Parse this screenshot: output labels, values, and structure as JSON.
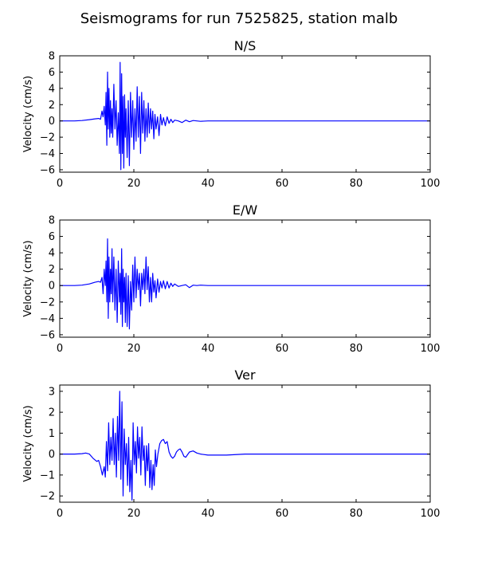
{
  "figure": {
    "title": "Seismograms for run 7525825, station malb",
    "line_color": "#0000ff"
  },
  "chart_data": [
    {
      "type": "line",
      "title": "N/S",
      "xlabel": "",
      "ylabel": "Velocity (cm/s)",
      "xlim": [
        0,
        100
      ],
      "ylim": [
        -6.3,
        8
      ],
      "xticks": [
        0,
        20,
        40,
        60,
        80,
        100
      ],
      "yticks": [
        -6,
        -4,
        -2,
        0,
        2,
        4,
        6,
        8
      ],
      "grid": false,
      "series": [
        {
          "x": [
            0,
            4,
            6,
            8,
            9.5,
            10.5,
            11,
            11.4,
            11.7,
            12,
            12.3,
            12.5,
            12.7,
            12.9,
            13.1,
            13.3,
            13.5,
            13.7,
            13.9,
            14.1,
            14.3,
            14.6,
            14.9,
            15.2,
            15.5,
            15.8,
            16.1,
            16.3,
            16.5,
            16.7,
            16.9,
            17.1,
            17.3,
            17.5,
            17.7,
            17.9,
            18.2,
            18.5,
            18.8,
            19.1,
            19.4,
            19.7,
            20,
            20.3,
            20.6,
            20.9,
            21.2,
            21.5,
            21.8,
            22.1,
            22.4,
            22.7,
            23,
            23.3,
            23.6,
            23.9,
            24.2,
            24.5,
            24.8,
            25.1,
            25.4,
            25.7,
            26,
            26.4,
            26.8,
            27.2,
            27.6,
            28,
            28.5,
            29,
            29.5,
            30,
            30.5,
            31,
            32,
            33,
            34,
            35,
            36,
            37,
            38,
            40,
            45,
            50,
            60,
            70,
            80,
            90,
            100
          ],
          "y": [
            0,
            0,
            0.05,
            0.15,
            0.25,
            0.3,
            0.2,
            1.2,
            0.5,
            1.8,
            -0.5,
            3.5,
            -3,
            6,
            -1,
            4,
            -2,
            2.5,
            -1.5,
            1.5,
            -2,
            4.5,
            -1,
            2.5,
            -3,
            1,
            -4,
            7.2,
            -6,
            5.8,
            -4,
            3,
            -5.8,
            3.2,
            -2,
            1.5,
            -4.5,
            2.5,
            -5.5,
            3.5,
            -2,
            2.5,
            -3.5,
            1.5,
            -2.5,
            4.2,
            -2,
            3,
            -4,
            3.5,
            -1.5,
            2.5,
            -2.5,
            1.5,
            -2,
            2.2,
            -1.5,
            1.5,
            -1,
            1.2,
            -2.2,
            0.8,
            -1,
            0.5,
            -1.8,
            0.8,
            -0.5,
            0.4,
            -0.6,
            0.5,
            -0.3,
            0.2,
            -0.2,
            0.1,
            0,
            -0.2,
            0.1,
            -0.1,
            0.05,
            0,
            -0.05,
            0,
            0,
            0,
            0,
            0,
            0,
            0,
            0
          ]
        }
      ]
    },
    {
      "type": "line",
      "title": "E/W",
      "xlabel": "",
      "ylabel": "Velocity (cm/s)",
      "xlim": [
        0,
        100
      ],
      "ylim": [
        -6.3,
        8
      ],
      "xticks": [
        0,
        20,
        40,
        60,
        80,
        100
      ],
      "yticks": [
        -6,
        -4,
        -2,
        0,
        2,
        4,
        6,
        8
      ],
      "grid": false,
      "series": [
        {
          "x": [
            0,
            4,
            6,
            8,
            9.5,
            10.5,
            11,
            11.4,
            11.7,
            12,
            12.3,
            12.5,
            12.7,
            12.9,
            13.1,
            13.3,
            13.5,
            13.7,
            13.9,
            14.1,
            14.3,
            14.6,
            14.9,
            15.2,
            15.5,
            15.8,
            16.1,
            16.3,
            16.5,
            16.7,
            16.9,
            17.1,
            17.3,
            17.5,
            17.7,
            17.9,
            18.2,
            18.5,
            18.8,
            19.1,
            19.4,
            19.7,
            20,
            20.3,
            20.6,
            20.9,
            21.2,
            21.5,
            21.8,
            22.1,
            22.4,
            22.7,
            23,
            23.3,
            23.6,
            23.9,
            24.2,
            24.5,
            24.8,
            25.1,
            25.4,
            25.7,
            26,
            26.4,
            26.8,
            27.2,
            27.6,
            28,
            28.5,
            29,
            29.5,
            30,
            30.5,
            31,
            32,
            33,
            34,
            35,
            36,
            37,
            38,
            40,
            45,
            50,
            60,
            70,
            80,
            100
          ],
          "y": [
            0,
            0,
            0.05,
            0.2,
            0.4,
            0.5,
            0.4,
            1,
            -1,
            2,
            0,
            3,
            -2,
            5.7,
            -4,
            3.5,
            -2,
            2,
            -1,
            4.5,
            -2,
            3.5,
            -3,
            2,
            -4.5,
            3,
            -2,
            1.5,
            -3.5,
            4.5,
            -5,
            2,
            -2,
            1,
            -4.5,
            1.5,
            -5,
            1.2,
            -5.3,
            0.5,
            -3,
            2.5,
            -2,
            3.5,
            -1.5,
            2,
            -0.5,
            1.5,
            -2.5,
            1.5,
            -0.5,
            2,
            -1,
            3.5,
            -0.5,
            2.3,
            -2,
            1,
            -2,
            1.5,
            -0.8,
            0.6,
            -1.5,
            0.8,
            -0.8,
            0.5,
            -0.3,
            0.6,
            -0.4,
            0.5,
            -0.3,
            0.3,
            -0.1,
            0.2,
            -0.1,
            0,
            0.1,
            -0.25,
            0.05,
            0,
            0.05,
            0,
            0,
            0,
            0,
            0,
            0,
            0
          ]
        }
      ]
    },
    {
      "type": "line",
      "title": "Ver",
      "xlabel": "",
      "ylabel": "Velocity (cm/s)",
      "xlim": [
        0,
        100
      ],
      "ylim": [
        -2.3,
        3.3
      ],
      "xticks": [
        0,
        20,
        40,
        60,
        80,
        100
      ],
      "yticks": [
        -2,
        -1,
        0,
        1,
        2,
        3
      ],
      "grid": false,
      "series": [
        {
          "x": [
            0,
            4,
            6,
            7,
            8,
            9,
            10,
            10.5,
            11,
            11.5,
            12,
            12.3,
            12.6,
            12.9,
            13.2,
            13.5,
            13.8,
            14.1,
            14.4,
            14.7,
            15,
            15.3,
            15.6,
            15.9,
            16.2,
            16.5,
            16.8,
            17.1,
            17.4,
            17.7,
            18,
            18.3,
            18.6,
            18.9,
            19.2,
            19.5,
            19.8,
            20.1,
            20.4,
            20.7,
            21,
            21.3,
            21.6,
            21.9,
            22.2,
            22.5,
            22.8,
            23.1,
            23.4,
            23.7,
            24,
            24.3,
            24.6,
            24.9,
            25.2,
            25.5,
            25.8,
            26.1,
            26.5,
            27,
            27.5,
            28,
            28.5,
            29,
            29.5,
            30,
            30.5,
            31,
            31.5,
            32,
            32.5,
            33,
            33.5,
            34,
            35,
            36,
            37,
            38,
            40,
            45,
            50,
            60,
            70,
            80,
            100
          ],
          "y": [
            0,
            0,
            0.02,
            0.05,
            0,
            -0.2,
            -0.35,
            -0.3,
            -0.6,
            -1,
            -0.6,
            -1.1,
            0.6,
            -0.8,
            1.5,
            -0.5,
            0.8,
            -0.3,
            1.7,
            -0.5,
            1,
            -1.1,
            1.8,
            -0.3,
            3,
            -1.2,
            2.5,
            -2,
            1.2,
            -0.5,
            0.5,
            -1.5,
            0.8,
            -1.8,
            -0.3,
            -2.2,
            1.5,
            -0.5,
            0.6,
            -0.9,
            1.3,
            -0.2,
            0.8,
            -1,
            1.3,
            -0.3,
            0.4,
            -1.5,
            0.4,
            -0.8,
            0.5,
            -1.6,
            -0.3,
            -1.7,
            -0.5,
            -1.5,
            0.2,
            -0.6,
            0,
            0.5,
            0.65,
            0.7,
            0.5,
            0.6,
            0.1,
            -0.1,
            -0.2,
            -0.1,
            0.1,
            0.2,
            0.25,
            0.1,
            -0.1,
            -0.15,
            0.1,
            0.15,
            0.05,
            0,
            -0.05,
            -0.05,
            0,
            0,
            0,
            0,
            0
          ]
        }
      ]
    }
  ]
}
